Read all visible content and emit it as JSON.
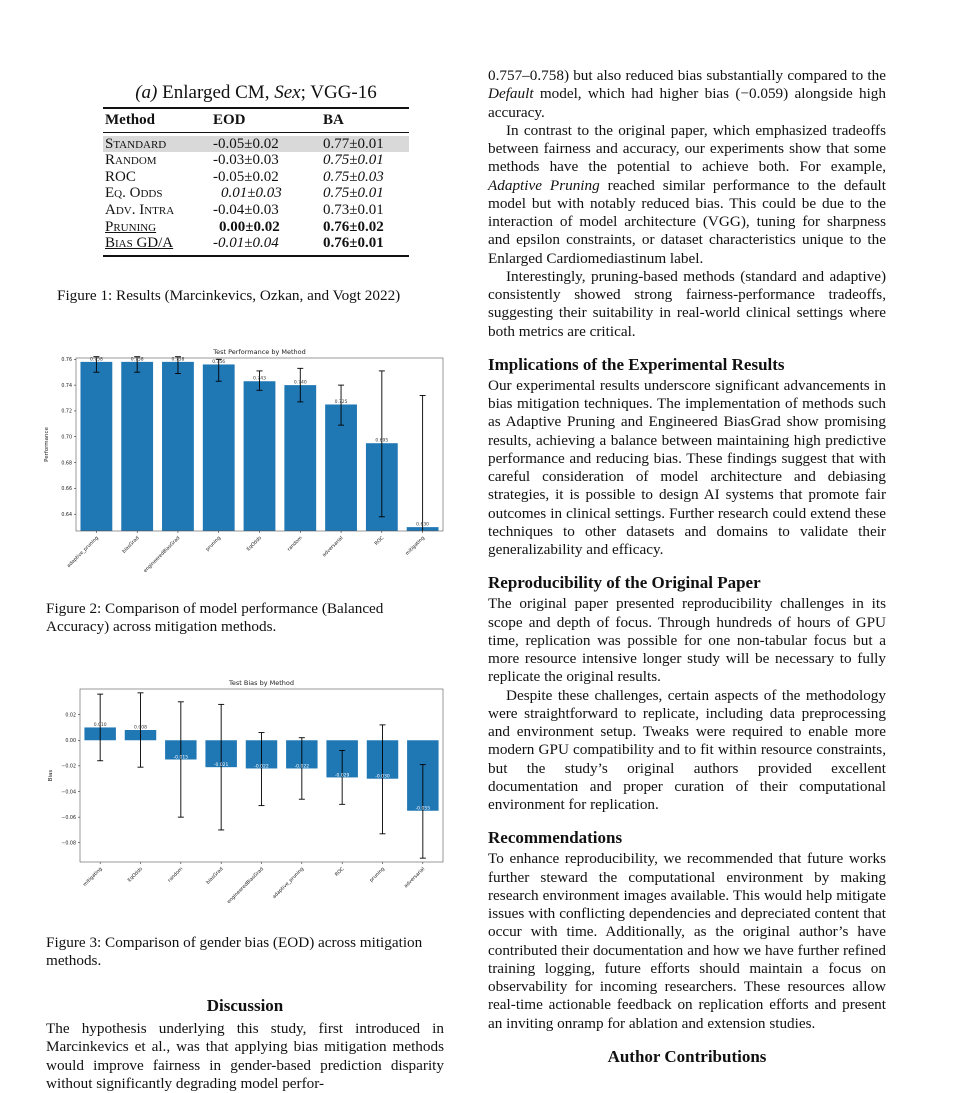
{
  "table": {
    "title_prefix": "(a)",
    "title": "Enlarged CM,",
    "title_italic": "Sex",
    "title_suffix": "; VGG-16",
    "headers": [
      "Method",
      "EOD",
      "BA"
    ],
    "rows": [
      {
        "method": "Standard",
        "eod": "-0.05±0.02",
        "ba": "0.77±0.01",
        "highlight": true
      },
      {
        "method": "Random",
        "eod": "-0.03±0.03",
        "ba": "0.75±0.01"
      },
      {
        "method": "ROC",
        "eod": "-0.05±0.02",
        "ba": "0.75±0.03"
      },
      {
        "method": "Eq. Odds",
        "eod": "0.01±0.03",
        "ba": "0.75±0.01"
      },
      {
        "method": "Adv. Intra",
        "eod": "-0.04±0.03",
        "ba": "0.73±0.01"
      },
      {
        "method": "Pruning",
        "eod": "0.00±0.02",
        "ba": "0.76±0.02"
      },
      {
        "method": "Bias GD/A",
        "eod": "-0.01±0.04",
        "ba": "0.76±0.01"
      }
    ]
  },
  "figure1_caption": "Figure 1: Results (Marcinkevics, Ozkan, and Vogt 2022)",
  "figure2_caption": "Figure 2: Comparison of model performance (Balanced Accuracy) across mitigation methods.",
  "figure3_caption": "Figure 3: Comparison of gender bias (EOD) across mitigation methods.",
  "chart_data": [
    {
      "type": "bar",
      "title": "Test Performance by Method",
      "xlabel": "",
      "ylabel": "Performance",
      "categories": [
        "adaptive_pruning",
        "biasGrad",
        "engineeredBiasGrad",
        "pruning",
        "EqOdds",
        "random",
        "adversarial",
        "ROC",
        "mitigating"
      ],
      "values": [
        0.758,
        0.758,
        0.758,
        0.756,
        0.743,
        0.74,
        0.725,
        0.695,
        0.63
      ],
      "value_labels": [
        "0.758",
        "0.758",
        "0.758",
        "0.756",
        "0.743",
        "0.740",
        "0.725",
        "0.695",
        "0.630"
      ],
      "error_low": [
        0.75,
        0.75,
        0.749,
        0.743,
        0.736,
        0.727,
        0.709,
        0.638,
        0.62
      ],
      "error_high": [
        0.762,
        0.762,
        0.762,
        0.76,
        0.751,
        0.753,
        0.74,
        0.751,
        0.732
      ],
      "ylim": [
        0.627,
        0.761
      ],
      "yticks": [
        "0.64",
        "0.66",
        "0.68",
        "0.70",
        "0.72",
        "0.74",
        "0.76"
      ],
      "grid": false,
      "color": "#1f77b4"
    },
    {
      "type": "bar",
      "title": "Test Bias by Method",
      "xlabel": "",
      "ylabel": "Bias",
      "categories": [
        "mitigating",
        "EqOdds",
        "random",
        "biasGrad",
        "engineeredBiasGrad",
        "adaptive_pruning",
        "ROC",
        "pruning",
        "adversarial"
      ],
      "values": [
        0.01,
        0.008,
        -0.015,
        -0.021,
        -0.022,
        -0.022,
        -0.029,
        -0.03,
        -0.055
      ],
      "value_labels": [
        "0.010",
        "0.008",
        "-0.015",
        "-0.021",
        "-0.022",
        "-0.022",
        "-0.029",
        "-0.030",
        "-0.055"
      ],
      "error_low": [
        -0.016,
        -0.021,
        -0.06,
        -0.07,
        -0.051,
        -0.046,
        -0.05,
        -0.073,
        -0.092
      ],
      "error_high": [
        0.036,
        0.037,
        0.03,
        0.028,
        0.006,
        0.002,
        -0.008,
        0.012,
        -0.019
      ],
      "ylim": [
        -0.095,
        0.04
      ],
      "yticks": [
        "0.02",
        "0.00",
        "−0.02",
        "−0.04",
        "−0.06",
        "−0.08"
      ],
      "ytick_values": [
        0.02,
        0.0,
        -0.02,
        -0.04,
        -0.06,
        -0.08
      ],
      "grid": false,
      "color": "#1f77b4"
    }
  ],
  "left": {
    "discussion_heading": "Discussion",
    "discussion_text": "The hypothesis underlying this study, first introduced in Marcinkevics et al., was that applying bias mitigation methods would improve fairness in gender-based prediction disparity without significantly degrading model perfor-"
  },
  "right": {
    "p1_a": "0.757–0.758) but also reduced bias substantially compared to the ",
    "p1_italic": "Default",
    "p1_b": " model, which had higher bias (−0.059) alongside high accuracy.",
    "p2_a": "In contrast to the original paper, which emphasized tradeoffs between fairness and accuracy, our experiments show that some methods have the potential to achieve both. For example, ",
    "p2_italic": "Adaptive Pruning",
    "p2_b": " reached similar performance to the default model but with notably reduced bias. This could be due to the interaction of model architecture (VGG), tuning for sharpness and epsilon constraints, or dataset characteristics unique to the Enlarged Cardiomediastinum label.",
    "p3": "Interestingly, pruning-based methods (standard and adaptive) consistently showed strong fairness-performance tradeoffs, suggesting their suitability in real-world clinical settings where both metrics are critical.",
    "h_implications": "Implications of the Experimental Results",
    "p_implications": "Our experimental results underscore significant advancements in bias mitigation techniques. The implementation of methods such as Adaptive Pruning and Engineered BiasGrad show promising results, achieving a balance between maintaining high predictive performance and reducing bias. These findings suggest that with careful consideration of model architecture and debiasing strategies, it is possible to design AI systems that promote fair outcomes in clinical settings. Further research could extend these techniques to other datasets and domains to validate their generalizability and efficacy.",
    "h_repro": "Reproducibility of the Original Paper",
    "p_repro1": "The original paper presented reproducibility challenges in its scope and depth of focus. Through hundreds of hours of GPU time, replication was possible for one non-tabular focus but a more resource intensive longer study will be necessary to fully replicate the original results.",
    "p_repro2": "Despite these challenges, certain aspects of the methodology were straightforward to replicate, including data preprocessing and environment setup. Tweaks were required to enable more modern GPU compatibility and to fit within resource constraints, but the study’s original authors provided excellent documentation and proper curation of their computational environment for replication.",
    "h_recs": "Recommendations",
    "p_recs": "To enhance reproducibility, we recommended that future works further steward the computational environment by making research environment images available. This would help mitigate issues with conflicting dependencies and depreciated content that occur with time. Additionally, as the original author’s have contributed their documentation and how we have further refined training logging, future efforts should maintain a focus on observability for incoming researchers. These resources allow real-time actionable feedback on replication efforts and present an inviting onramp for ablation and extension studies.",
    "h_author": "Author Contributions"
  }
}
